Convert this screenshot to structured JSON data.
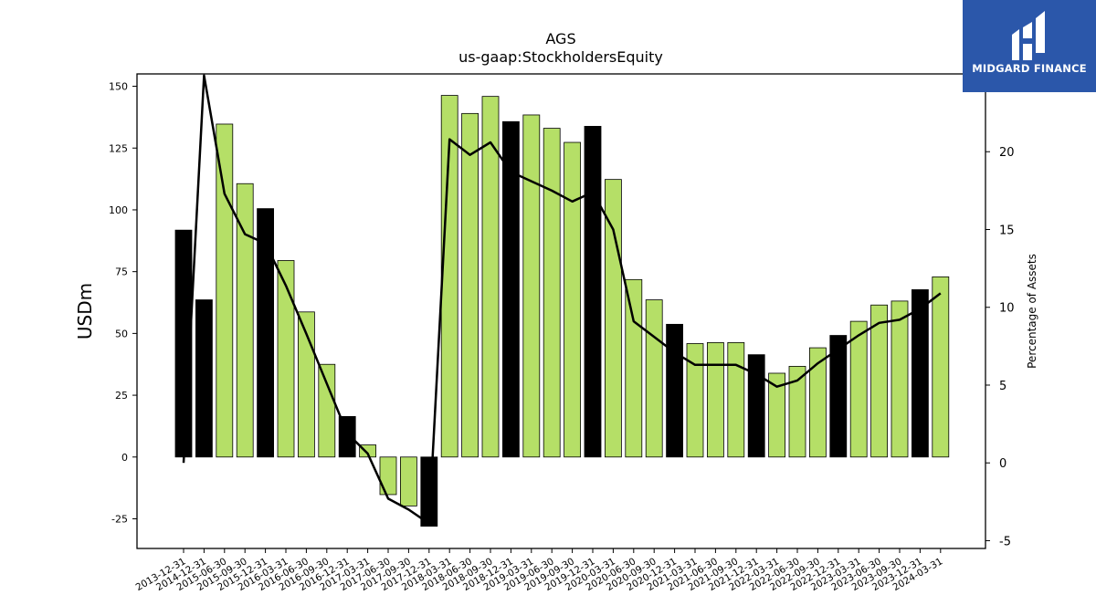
{
  "chart_data": {
    "type": "bar+line",
    "title": "AGS",
    "subtitle": "us-gaap:StockholdersEquity",
    "ylabel": "USDm",
    "y2label": "Percentage of Assets",
    "ylim": [
      -37,
      155
    ],
    "y2lim": [
      -5.5,
      25
    ],
    "yticks": [
      -25,
      0,
      25,
      50,
      75,
      100,
      125,
      150
    ],
    "y2ticks": [
      -5,
      0,
      5,
      10,
      15,
      20
    ],
    "categories": [
      "2013-12-31",
      "2014-12-31",
      "2015-06-30",
      "2015-09-30",
      "2015-12-31",
      "2016-03-31",
      "2016-06-30",
      "2016-09-30",
      "2016-12-31",
      "2017-03-31",
      "2017-06-30",
      "2017-09-30",
      "2017-12-31",
      "2018-03-31",
      "2018-06-30",
      "2018-09-30",
      "2018-12-31",
      "2019-03-31",
      "2019-06-30",
      "2019-09-30",
      "2019-12-31",
      "2020-03-31",
      "2020-06-30",
      "2020-09-30",
      "2020-12-31",
      "2021-03-31",
      "2021-06-30",
      "2021-09-30",
      "2021-12-31",
      "2022-03-31",
      "2022-06-30",
      "2022-09-30",
      "2022-12-31",
      "2023-03-31",
      "2023-06-30",
      "2023-09-30",
      "2023-12-31",
      "2024-03-31"
    ],
    "series": [
      {
        "type": "bar",
        "values": [
          91.8,
          63.6,
          134.7,
          110.6,
          100.5,
          79.5,
          58.7,
          37.5,
          16.4,
          4.9,
          -15.2,
          -19.8,
          -28.0,
          146.3,
          139.0,
          145.9,
          135.7,
          138.4,
          133.0,
          127.3,
          133.8,
          112.3,
          71.8,
          63.6,
          53.7,
          45.9,
          46.3,
          46.3,
          41.4,
          33.9,
          36.7,
          44.2,
          49.2,
          54.9,
          61.5,
          63.1,
          67.7,
          72.9
        ],
        "annual_flags": [
          true,
          true,
          false,
          false,
          true,
          false,
          false,
          false,
          true,
          false,
          false,
          false,
          true,
          false,
          false,
          false,
          true,
          false,
          false,
          false,
          true,
          false,
          false,
          false,
          true,
          false,
          false,
          false,
          true,
          false,
          false,
          false,
          true,
          false,
          false,
          false,
          true,
          false
        ],
        "annual_color": "#000000",
        "quarter_color": "#b5df67"
      },
      {
        "type": "line",
        "axis": "right",
        "values": [
          0.0,
          24.9,
          17.3,
          14.7,
          14.1,
          11.4,
          8.3,
          5.1,
          1.9,
          0.6,
          -2.3,
          -3.0,
          -3.9,
          20.8,
          19.8,
          20.6,
          18.7,
          18.1,
          17.5,
          16.8,
          17.4,
          15.0,
          9.1,
          8.1,
          7.1,
          6.3,
          6.3,
          6.3,
          5.7,
          4.9,
          5.3,
          6.4,
          7.3,
          8.2,
          9.0,
          9.2,
          9.9,
          10.9
        ],
        "color": "#000000"
      }
    ],
    "grid": false,
    "legend": "none"
  },
  "logo": {
    "brand": "MIDGARD FINANCE",
    "color": "#2b57aa"
  }
}
